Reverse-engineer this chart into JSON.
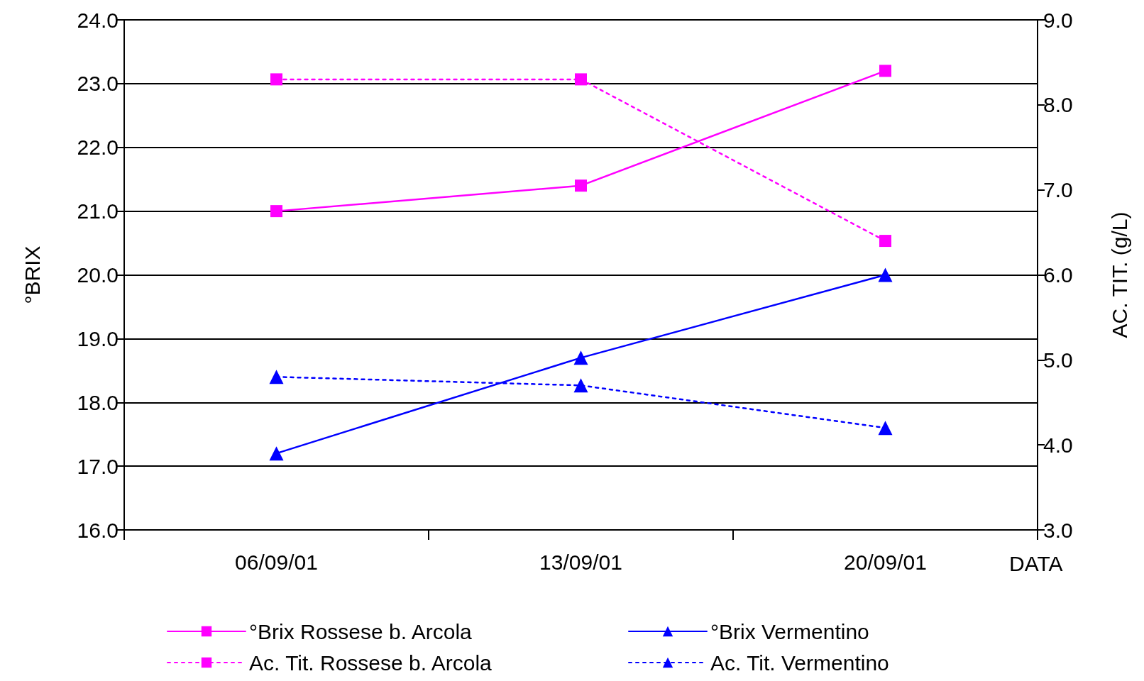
{
  "chart_data": {
    "type": "line",
    "xlabel": "DATA",
    "ylabel": "°BRIX",
    "y2label": "AC. TIT. (g/L)",
    "categories": [
      "06/09/01",
      "13/09/01",
      "20/09/01"
    ],
    "series": [
      {
        "name": "°Brix Rossese b. Arcola",
        "color": "#ff00ff",
        "values": [
          21.0,
          21.4,
          23.2
        ],
        "marker": "square",
        "line_style": "solid"
      },
      {
        "name": "Ac. Tit. Rossese b. Arcola",
        "color": "#ff00ff",
        "values": [
          8.3,
          8.3,
          6.4
        ],
        "marker": "square",
        "line_style": "dotted",
        "axis": "y2"
      },
      {
        "name": "°Brix Vermentino",
        "color": "#0000ff",
        "values": [
          17.2,
          18.7,
          20.0
        ],
        "marker": "triangle",
        "line_style": "solid"
      },
      {
        "name": "Ac. Tit. Vermentino",
        "color": "#0000ff",
        "values": [
          4.8,
          4.7,
          4.2
        ],
        "marker": "triangle",
        "line_style": "dotted",
        "axis": "y2"
      }
    ],
    "ylim": [
      16,
      24
    ],
    "yticks": [
      {
        "value": 16,
        "label": "16.0"
      },
      {
        "value": 17,
        "label": "17.0"
      },
      {
        "value": 18,
        "label": "18.0"
      },
      {
        "value": 19,
        "label": "19.0"
      },
      {
        "value": 20,
        "label": "20.0"
      },
      {
        "value": 21,
        "label": "21.0"
      },
      {
        "value": 22,
        "label": "22.0"
      },
      {
        "value": 23,
        "label": "23.0"
      },
      {
        "value": 24,
        "label": "24.0"
      }
    ],
    "y2lim": [
      3,
      9
    ],
    "y2ticks": [
      {
        "value": 3,
        "label": "3.0"
      },
      {
        "value": 4,
        "label": "4.0"
      },
      {
        "value": 5,
        "label": "5.0"
      },
      {
        "value": 6,
        "label": "6.0"
      },
      {
        "value": 7,
        "label": "7.0"
      },
      {
        "value": 8,
        "label": "8.0"
      },
      {
        "value": 9,
        "label": "9.0"
      }
    ],
    "grid": "y",
    "legend": "bottom"
  }
}
